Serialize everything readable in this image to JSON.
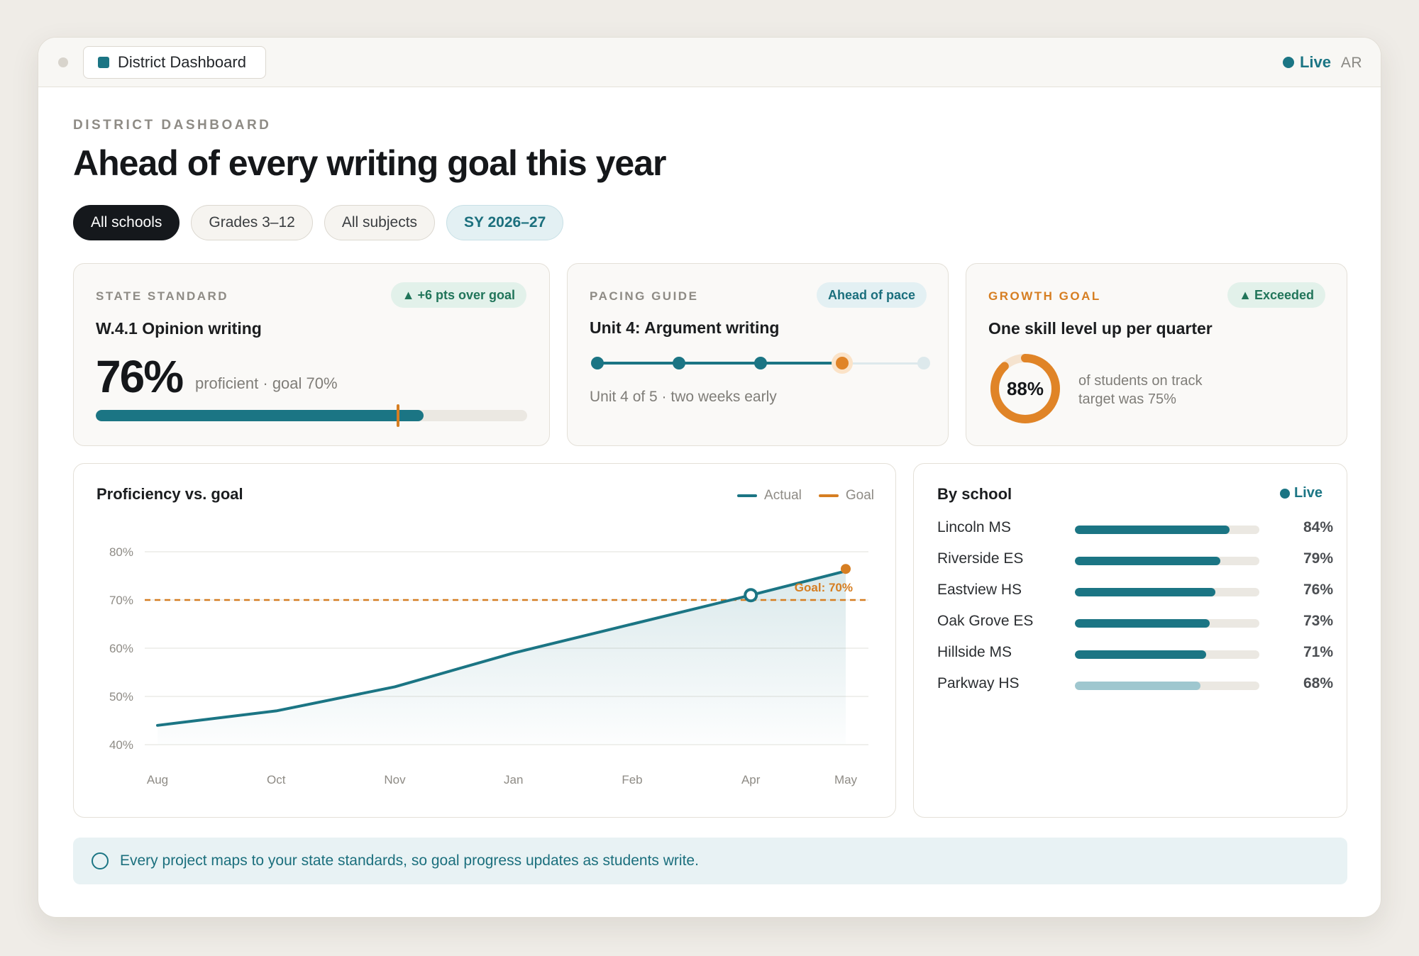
{
  "window": {
    "tab_label": "District Dashboard",
    "status": "Live",
    "user_initials": "AR"
  },
  "header": {
    "eyebrow": "DISTRICT DASHBOARD",
    "title": "Ahead of every writing goal this year"
  },
  "filters": [
    {
      "label": "All schools",
      "active": true
    },
    {
      "label": "Grades 3–12",
      "active": false
    },
    {
      "label": "All subjects",
      "active": false
    },
    {
      "label": "SY 2026–27",
      "active": false
    }
  ],
  "cards": {
    "standard": {
      "label": "STATE STANDARD",
      "badge": "+6 pts over goal",
      "title": "W.4.1 Opinion writing",
      "value": "76%",
      "subtext": "proficient · goal 70%",
      "progress": 0.76,
      "goal": 0.7
    },
    "pacing": {
      "label": "PACING GUIDE",
      "badge": "Ahead of pace",
      "title": "Unit 4: Argument writing",
      "current_unit": 4,
      "total_units": 5,
      "subtext": "Unit 4 of 5 · two weeks early"
    },
    "growth": {
      "label": "GROWTH GOAL",
      "badge": "Exceeded",
      "title": "One skill level up per quarter",
      "value": "88%",
      "fraction": 0.88,
      "caption_line1": "of students on track",
      "caption_line2": "target was 75%"
    }
  },
  "chart": {
    "title": "Proficiency vs. goal",
    "legend_actual": "Actual",
    "legend_goal": "Goal",
    "goal_label": "Goal: 70%"
  },
  "chart_data": {
    "type": "line",
    "title": "Proficiency vs. goal",
    "x": [
      "Aug",
      "Oct",
      "Nov",
      "Jan",
      "Feb",
      "Apr",
      "May"
    ],
    "x_positions": [
      0,
      1,
      2,
      3,
      4,
      5,
      5.8
    ],
    "ylim": [
      40,
      80
    ],
    "yticks": [
      "80%",
      "70%",
      "60%",
      "50%",
      "40%"
    ],
    "ytick_values": [
      80,
      70,
      60,
      50,
      40
    ],
    "series": [
      {
        "name": "Actual",
        "values": [
          44,
          47,
          52,
          59,
          65,
          71,
          76
        ],
        "color": "#1b7584"
      }
    ],
    "goal": {
      "name": "Goal",
      "value": 70,
      "color": "#d67e22"
    },
    "crossing_marker": {
      "x": "Apr",
      "value": 71
    },
    "grid": true,
    "legend": "top-right"
  },
  "schools": {
    "title": "By school",
    "status": "Live",
    "rows": [
      {
        "name": "Lincoln MS",
        "pct": "84%",
        "value": 0.84
      },
      {
        "name": "Riverside ES",
        "pct": "79%",
        "value": 0.79
      },
      {
        "name": "Eastview HS",
        "pct": "76%",
        "value": 0.76
      },
      {
        "name": "Oak Grove ES",
        "pct": "73%",
        "value": 0.73
      },
      {
        "name": "Hillside MS",
        "pct": "71%",
        "value": 0.71
      },
      {
        "name": "Parkway HS",
        "pct": "68%",
        "value": 0.68,
        "below_goal": true
      }
    ]
  },
  "footer": {
    "note": "Every project maps to your state standards, so goal progress updates as students write."
  },
  "colors": {
    "accent": "#1b7584",
    "goal": "#d67e22",
    "below_goal": "#9fc7cf",
    "positive": "#21755a"
  }
}
